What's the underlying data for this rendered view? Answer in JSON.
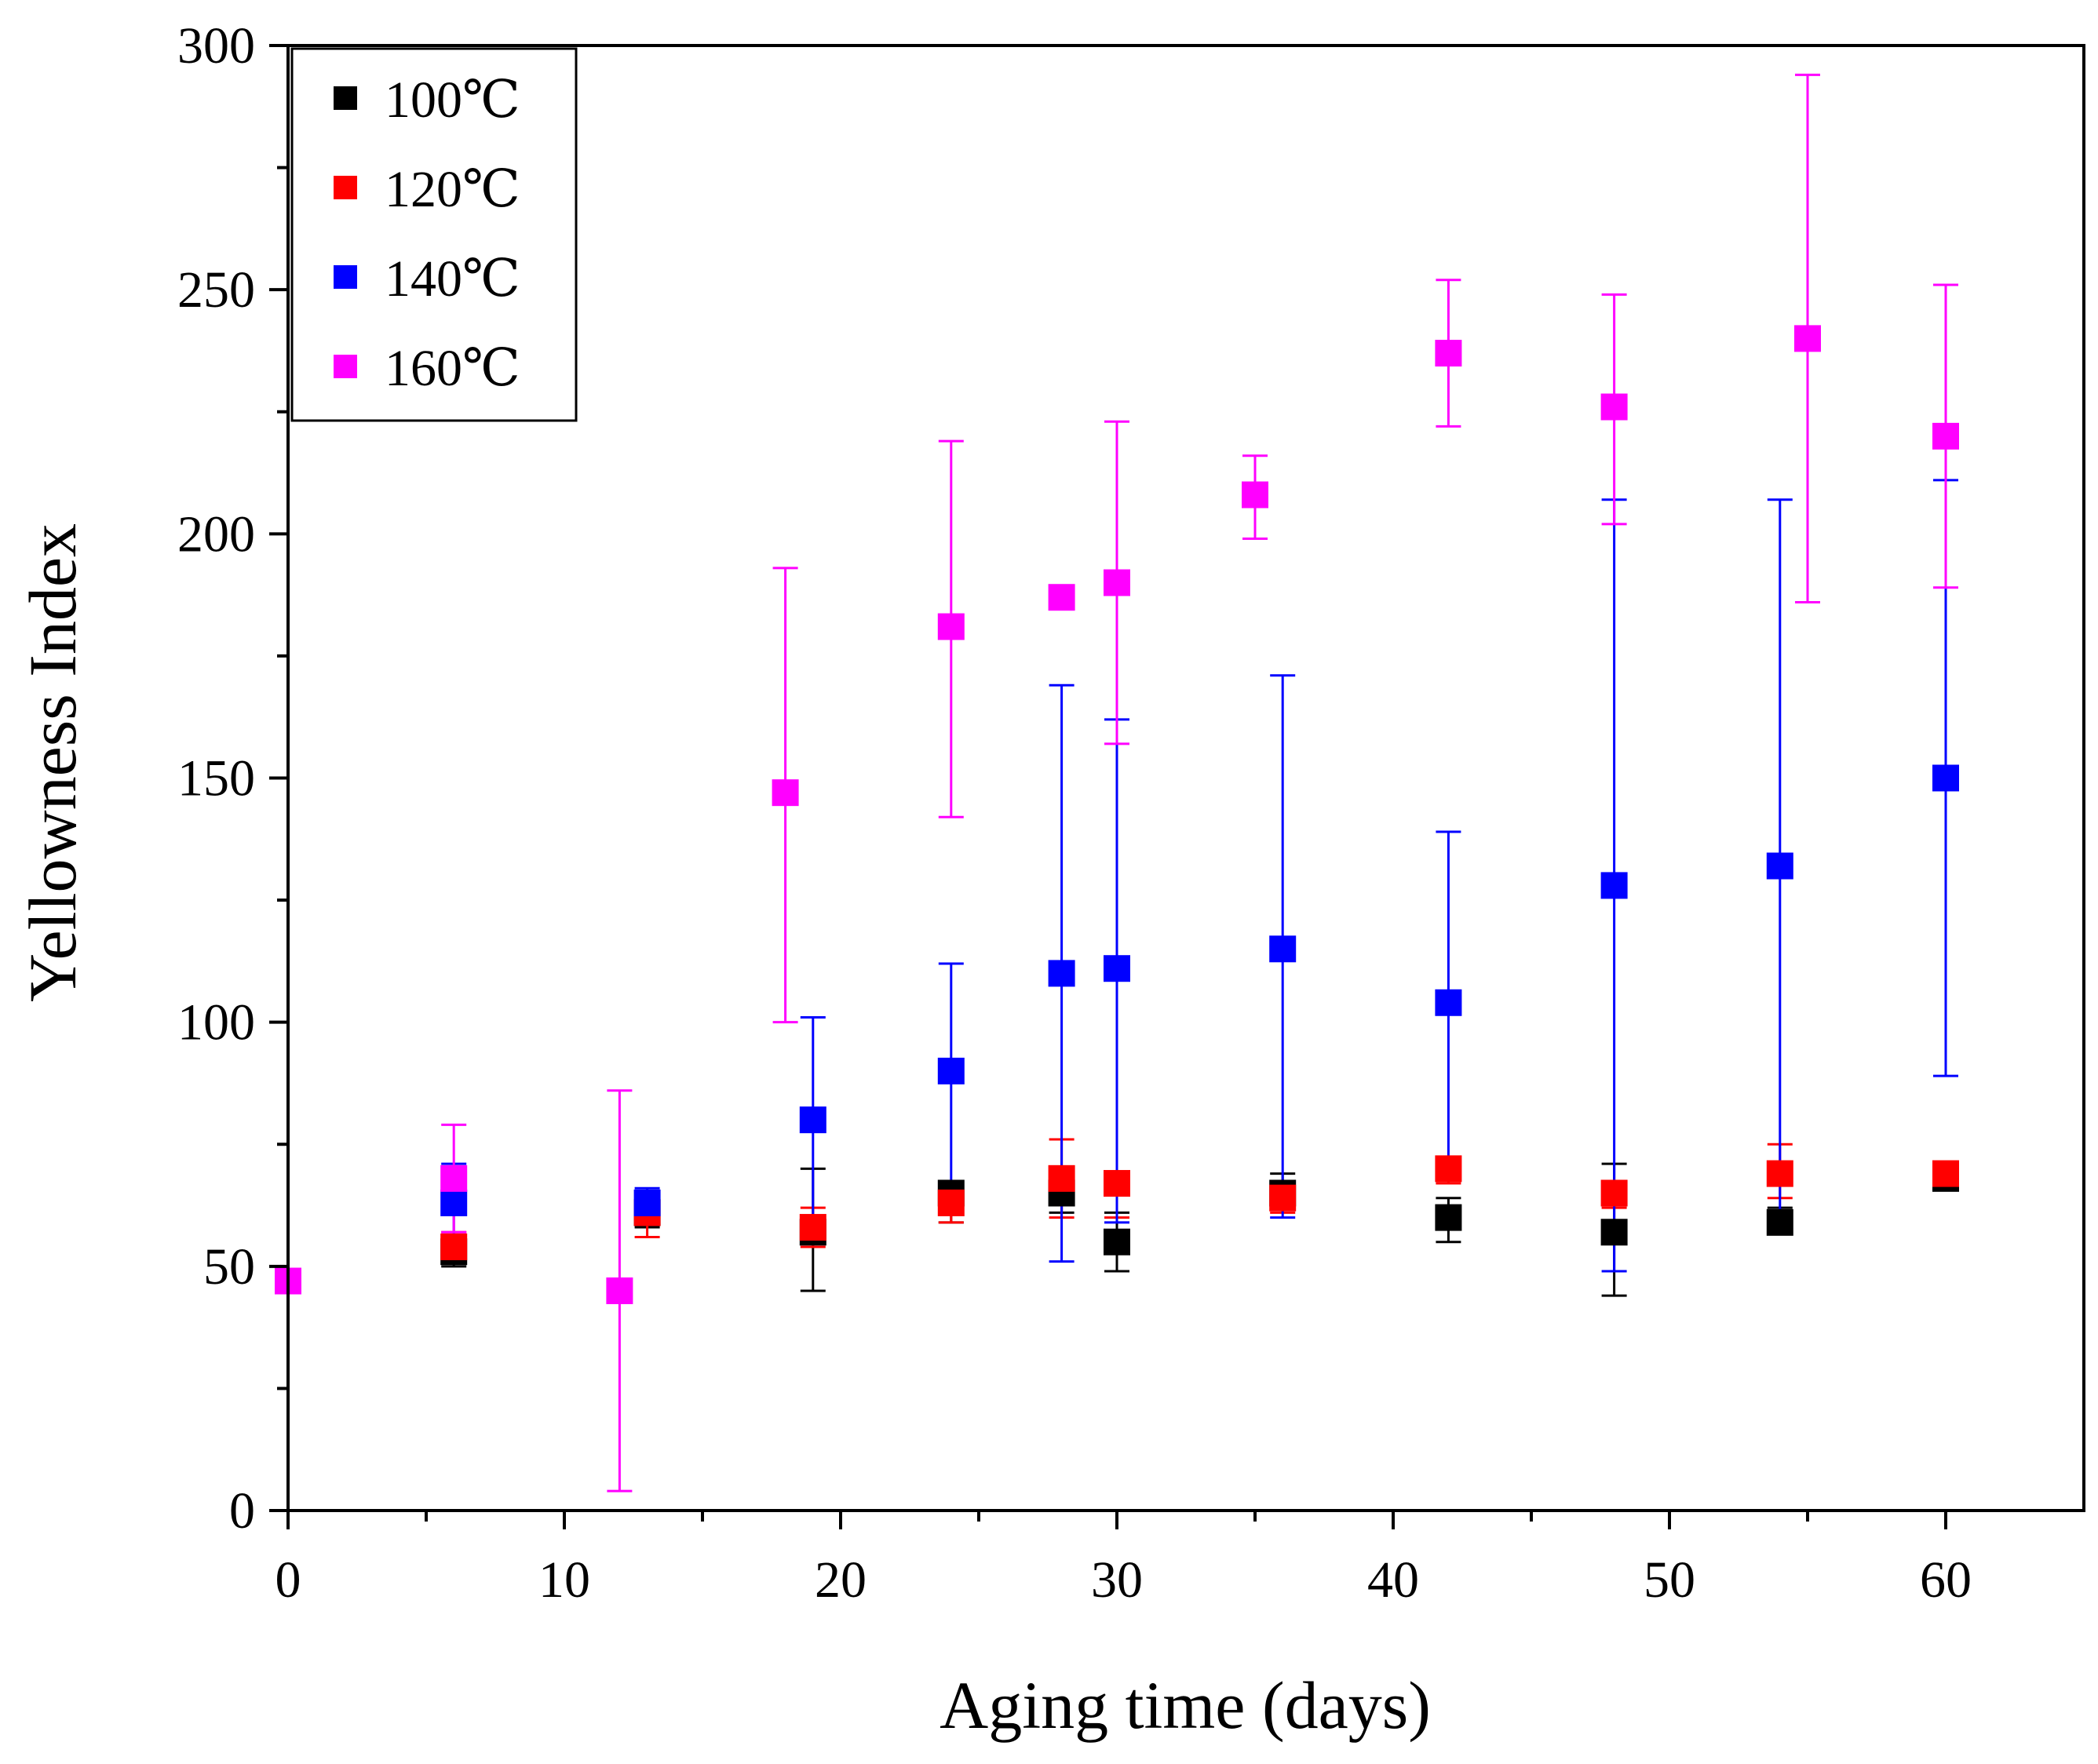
{
  "chart_data": {
    "type": "scatter",
    "title": "",
    "xlabel": "Aging time (days)",
    "ylabel": "Yellowness Index",
    "xlim": [
      0,
      65
    ],
    "ylim": [
      0,
      300
    ],
    "xticks": [
      0,
      10,
      20,
      30,
      40,
      50,
      60
    ],
    "yticks": [
      0,
      50,
      100,
      150,
      200,
      250,
      300
    ],
    "grid": false,
    "legend_position": "top-left",
    "series": [
      {
        "name": "100℃",
        "color": "#000000",
        "x": [
          6,
          13,
          19,
          24,
          28,
          30,
          36,
          42,
          48,
          54,
          60
        ],
        "y": [
          53,
          61,
          57,
          65,
          65,
          55,
          65,
          60,
          57,
          59,
          68
        ],
        "low": [
          50,
          58,
          45,
          59,
          61,
          49,
          62,
          55,
          44,
          57,
          66
        ],
        "high": [
          56,
          64,
          70,
          67,
          68,
          61,
          69,
          64,
          71,
          62,
          70
        ]
      },
      {
        "name": "120℃",
        "color": "#ff0000",
        "x": [
          6,
          13,
          19,
          24,
          28,
          30,
          36,
          42,
          48,
          54,
          60
        ],
        "y": [
          54,
          61,
          58,
          63,
          68,
          67,
          64,
          70,
          65,
          69,
          69
        ],
        "low": [
          51,
          56,
          54,
          59,
          60,
          60,
          61,
          67,
          62,
          64,
          66
        ],
        "high": [
          57,
          63,
          62,
          67,
          76,
          68,
          67,
          72,
          67,
          75,
          71
        ]
      },
      {
        "name": "140℃",
        "color": "#0000ff",
        "x": [
          6,
          13,
          19,
          24,
          28,
          30,
          36,
          42,
          48,
          54,
          60
        ],
        "y": [
          63,
          63,
          80,
          90,
          110,
          111,
          115,
          104,
          128,
          132,
          150
        ],
        "low": [
          56,
          61,
          57,
          66,
          51,
          59,
          60,
          69,
          49,
          57,
          89
        ],
        "high": [
          71,
          66,
          101,
          112,
          169,
          162,
          171,
          139,
          207,
          207,
          211
        ]
      },
      {
        "name": "160℃",
        "color": "#ff00ff",
        "x": [
          0,
          6,
          12,
          18,
          24,
          28,
          30,
          35,
          42,
          48,
          55,
          60
        ],
        "y": [
          47,
          68,
          45,
          147,
          181,
          187,
          190,
          208,
          237,
          226,
          240,
          220
        ],
        "low": [
          47,
          57,
          4,
          100,
          142,
          187,
          157,
          199,
          222,
          202,
          186,
          189
        ],
        "high": [
          47,
          79,
          86,
          193,
          219,
          187,
          223,
          216,
          252,
          249,
          294,
          251
        ]
      }
    ]
  }
}
